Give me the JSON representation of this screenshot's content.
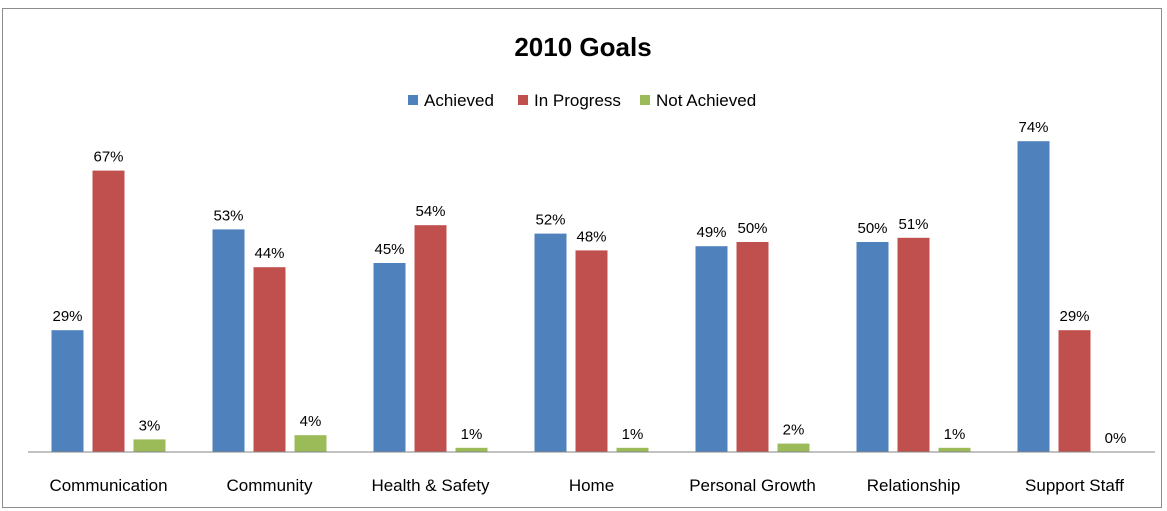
{
  "chart_data": {
    "type": "bar",
    "title": "2010 Goals",
    "xlabel": "",
    "ylabel": "",
    "ylim": [
      0,
      80
    ],
    "grid": false,
    "legend_position": "top",
    "categories": [
      "Communication",
      "Community",
      "Health & Safety",
      "Home",
      "Personal Growth",
      "Relationship",
      "Support Staff"
    ],
    "series": [
      {
        "name": "Achieved",
        "color": "#4f81bd",
        "values": [
          29,
          53,
          45,
          52,
          49,
          50,
          74
        ],
        "labels": [
          "29%",
          "53%",
          "45%",
          "52%",
          "49%",
          "50%",
          "74%"
        ]
      },
      {
        "name": "In Progress",
        "color": "#c0504d",
        "values": [
          67,
          44,
          54,
          48,
          50,
          51,
          29
        ],
        "labels": [
          "67%",
          "44%",
          "54%",
          "48%",
          "50%",
          "51%",
          "29%"
        ]
      },
      {
        "name": "Not Achieved",
        "color": "#9bbb59",
        "values": [
          3,
          4,
          1,
          1,
          2,
          1,
          0
        ],
        "labels": [
          "3%",
          "4%",
          "1%",
          "1%",
          "2%",
          "1%",
          "0%"
        ]
      }
    ]
  }
}
